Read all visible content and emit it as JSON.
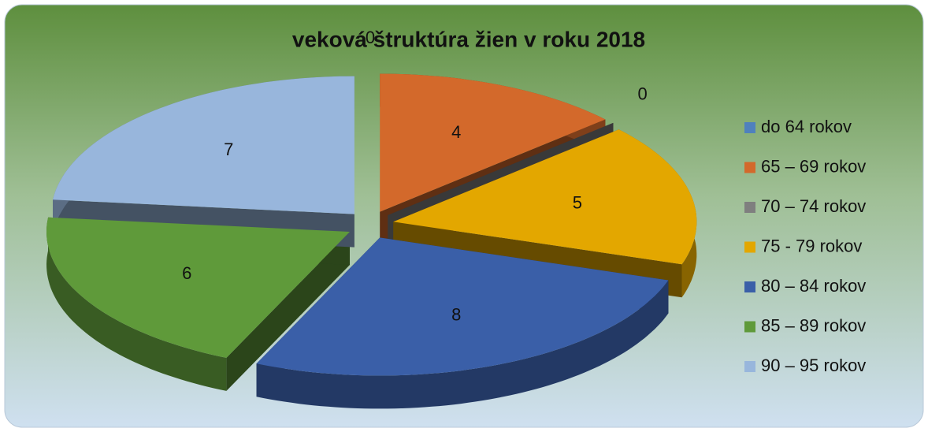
{
  "chart_data": {
    "type": "pie3d",
    "title": "veková štruktúra žien v roku 2018",
    "categories": [
      "do 64 rokov",
      "65 – 69 rokov",
      "70 – 74 rokov",
      "75 - 79 rokov",
      "80 – 84 rokov",
      "85 – 89 rokov",
      "90 – 95 rokov"
    ],
    "values": [
      0,
      4,
      0,
      5,
      8,
      6,
      7
    ],
    "colors": [
      "#4f81bd",
      "#d3692b",
      "#7f7f7f",
      "#e3a700",
      "#3a5fa8",
      "#5f9a3a",
      "#98b6dc"
    ],
    "legend": "right"
  }
}
